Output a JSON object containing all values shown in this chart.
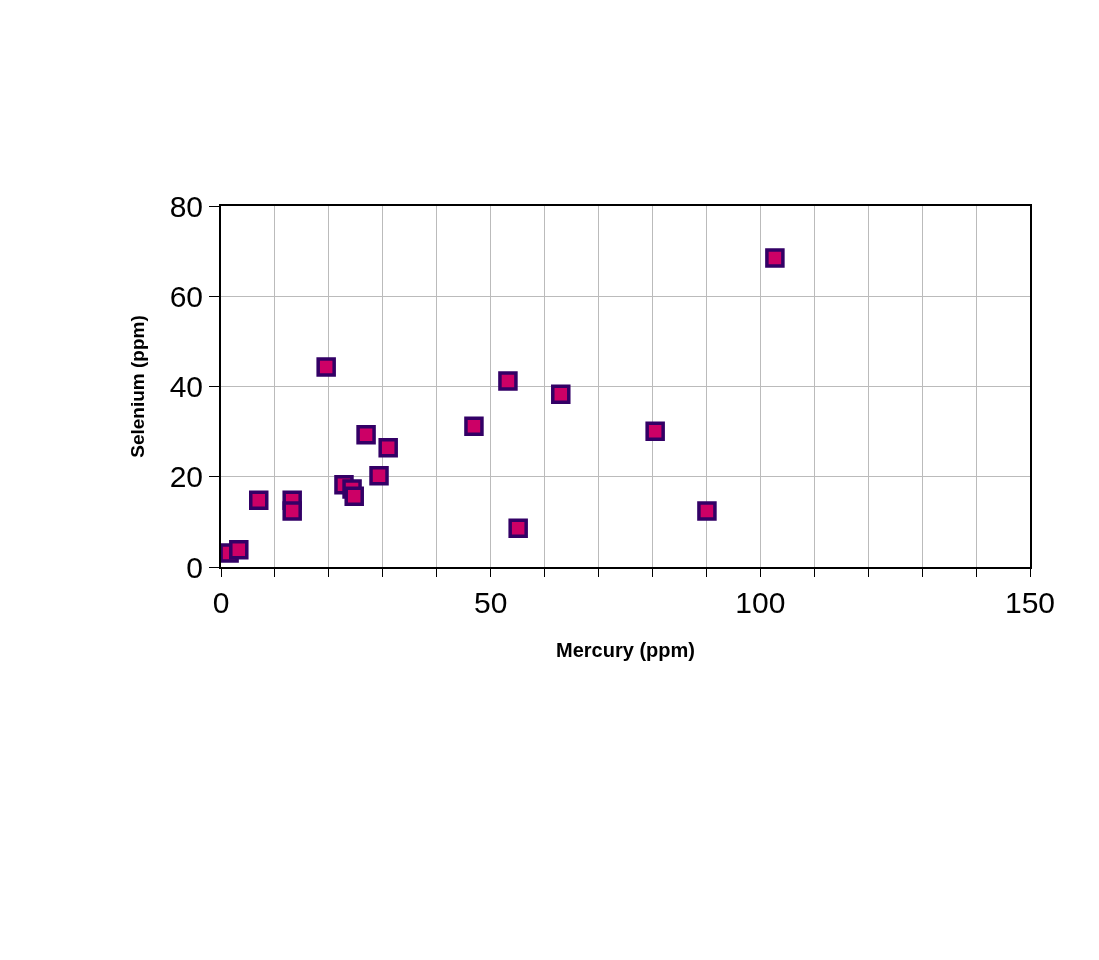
{
  "chart_data": {
    "type": "scatter",
    "xlabel": "Mercury (ppm)",
    "ylabel": "Selenium (ppm)",
    "x": [
      1.5,
      3.3,
      7.0,
      13.2,
      13.2,
      19.5,
      22.8,
      24.3,
      24.7,
      26.9,
      29.3,
      31.0,
      46.9,
      53.2,
      55.1,
      63.0,
      80.5,
      90.1,
      102.7
    ],
    "values": [
      3.1,
      3.8,
      14.8,
      14.8,
      12.4,
      44.3,
      18.2,
      17.3,
      15.7,
      29.3,
      20.2,
      26.4,
      31.2,
      41.2,
      8.6,
      38.3,
      30.1,
      12.4,
      68.5
    ],
    "color": "#cc0066",
    "marker": "square",
    "xlim": [
      0,
      150
    ],
    "xticks": [
      0,
      {
        "value": 10,
        "label": null
      },
      {
        "value": 20,
        "label": null
      },
      {
        "value": 30,
        "label": null
      },
      {
        "value": 40,
        "label": null
      },
      50,
      {
        "value": 60,
        "label": null
      },
      {
        "value": 70,
        "label": null
      },
      {
        "value": 80,
        "label": null
      },
      {
        "value": 90,
        "label": null
      },
      100,
      {
        "value": 110,
        "label": null
      },
      {
        "value": 120,
        "label": null
      },
      {
        "value": 130,
        "label": null
      },
      {
        "value": 140,
        "label": null
      },
      150
    ],
    "ylim": [
      0,
      80
    ],
    "yticks": [
      0,
      20,
      40,
      60,
      80
    ],
    "grid": true
  }
}
